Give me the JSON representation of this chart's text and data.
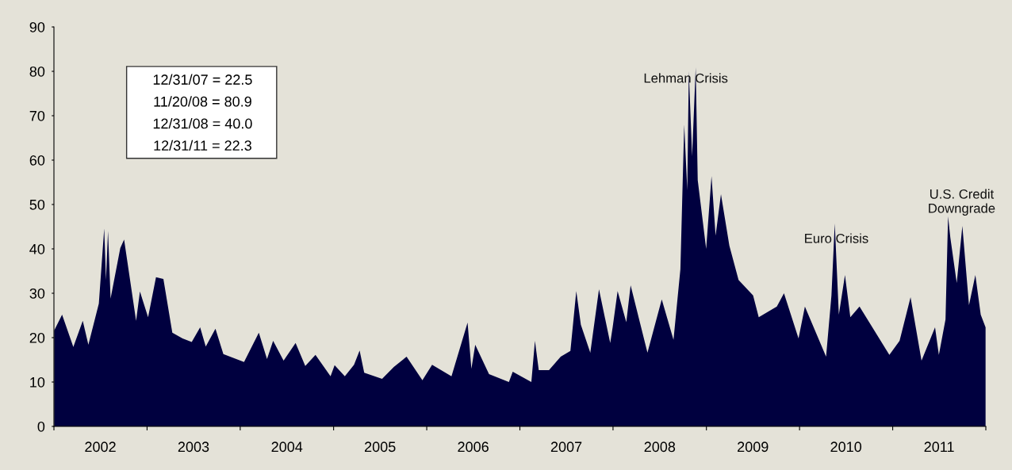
{
  "chart_data": {
    "type": "area",
    "x": [
      "2002-01-02",
      "2002-02-02",
      "2002-03-18",
      "2002-04-24",
      "2002-05-16",
      "2002-06-26",
      "2002-07-17",
      "2002-07-24",
      "2002-08-01",
      "2002-08-11",
      "2002-09-18",
      "2002-10-03",
      "2002-11-19",
      "2002-12-04",
      "2003-01-05",
      "2003-02-05",
      "2003-03-06",
      "2003-04-10",
      "2003-05-20",
      "2003-06-25",
      "2003-07-28",
      "2003-08-19",
      "2003-09-26",
      "2003-10-27",
      "2004-01-16",
      "2004-03-14",
      "2004-04-15",
      "2004-05-09",
      "2004-06-19",
      "2004-08-05",
      "2004-09-12",
      "2004-10-22",
      "2004-12-20",
      "2005-01-05",
      "2005-02-14",
      "2005-03-22",
      "2005-04-13",
      "2005-05-01",
      "2005-07-10",
      "2005-08-25",
      "2005-10-14",
      "2005-12-15",
      "2006-01-22",
      "2006-04-08",
      "2006-06-10",
      "2006-06-25",
      "2006-07-10",
      "2006-09-02",
      "2006-11-19",
      "2006-12-04",
      "2007-02-15",
      "2007-03-01",
      "2007-03-16",
      "2007-04-25",
      "2007-06-10",
      "2007-07-18",
      "2007-08-10",
      "2007-08-28",
      "2007-10-04",
      "2007-11-07",
      "2007-12-21",
      "2007-12-31",
      "2008-01-19",
      "2008-02-22",
      "2008-03-10",
      "2008-05-15",
      "2008-07-10",
      "2008-08-25",
      "2008-09-21",
      "2008-10-06",
      "2008-10-18",
      "2008-10-24",
      "2008-11-06",
      "2008-11-20",
      "2008-11-28",
      "2008-12-31",
      "2009-01-21",
      "2009-02-06",
      "2009-02-27",
      "2009-04-01",
      "2009-05-07",
      "2009-07-03",
      "2009-07-25",
      "2009-10-04",
      "2009-11-01",
      "2009-12-28",
      "2010-01-22",
      "2010-04-15",
      "2010-05-06",
      "2010-05-19",
      "2010-06-04",
      "2010-06-28",
      "2010-07-19",
      "2010-08-24",
      "2010-12-19",
      "2011-01-28",
      "2011-03-12",
      "2011-04-24",
      "2011-06-16",
      "2011-07-01",
      "2011-07-27",
      "2011-08-06",
      "2011-08-15",
      "2011-09-09",
      "2011-10-01",
      "2011-10-27",
      "2011-11-21",
      "2011-12-12",
      "2011-12-31"
    ],
    "values": [
      21.6,
      25.2,
      17.9,
      23.8,
      18.4,
      27.7,
      44.6,
      33.0,
      44.0,
      28.8,
      40.2,
      42.1,
      23.8,
      30.4,
      24.6,
      33.6,
      33.2,
      21.1,
      19.8,
      19.0,
      22.3,
      18.0,
      22.0,
      16.3,
      14.5,
      21.1,
      15.2,
      19.3,
      14.8,
      18.8,
      13.6,
      16.1,
      11.3,
      13.8,
      11.3,
      13.9,
      17.1,
      12.1,
      10.7,
      13.4,
      15.7,
      10.4,
      13.9,
      11.3,
      23.4,
      13.0,
      18.4,
      11.8,
      10.0,
      12.3,
      10.0,
      19.3,
      12.7,
      12.7,
      15.7,
      17.0,
      30.5,
      22.9,
      16.6,
      30.9,
      18.8,
      22.5,
      30.5,
      23.5,
      31.8,
      16.6,
      28.6,
      19.5,
      35.4,
      68.0,
      53.2,
      80.0,
      60.9,
      80.9,
      55.5,
      40.0,
      56.4,
      43.0,
      52.3,
      40.7,
      33.0,
      29.5,
      24.6,
      27.0,
      30.0,
      19.8,
      27.0,
      15.7,
      29.5,
      45.7,
      25.2,
      34.1,
      24.6,
      27.0,
      16.1,
      19.3,
      29.1,
      14.8,
      22.3,
      16.1,
      24.1,
      47.3,
      42.5,
      32.3,
      45.2,
      27.3,
      34.1,
      25.2,
      22.3
    ],
    "color": "#00003f",
    "xlim": [
      "2002-01-01",
      "2012-01-01"
    ],
    "xticks": [
      {
        "value": "2002-01-01",
        "label": null
      },
      {
        "value": "2002-07-02",
        "label": "2002"
      },
      {
        "value": "2003-01-01",
        "label": null
      },
      {
        "value": "2003-07-02",
        "label": "2003"
      },
      {
        "value": "2004-01-01",
        "label": null
      },
      {
        "value": "2004-07-02",
        "label": "2004"
      },
      {
        "value": "2005-01-01",
        "label": null
      },
      {
        "value": "2005-07-02",
        "label": "2005"
      },
      {
        "value": "2006-01-01",
        "label": null
      },
      {
        "value": "2006-07-02",
        "label": "2006"
      },
      {
        "value": "2007-01-01",
        "label": null
      },
      {
        "value": "2007-07-02",
        "label": "2007"
      },
      {
        "value": "2008-01-01",
        "label": null
      },
      {
        "value": "2008-07-02",
        "label": "2008"
      },
      {
        "value": "2009-01-01",
        "label": null
      },
      {
        "value": "2009-07-02",
        "label": "2009"
      },
      {
        "value": "2010-01-01",
        "label": null
      },
      {
        "value": "2010-07-02",
        "label": "2010"
      },
      {
        "value": "2011-01-01",
        "label": null
      },
      {
        "value": "2011-07-02",
        "label": "2011"
      },
      {
        "value": "2012-01-01",
        "label": null
      }
    ],
    "ylim": [
      0,
      90
    ],
    "yticks": [
      0,
      10,
      20,
      30,
      40,
      50,
      60,
      70,
      80,
      90
    ],
    "grid": false,
    "legend": false,
    "annotations": [
      "12/31/07 = 22.5",
      "11/20/08 = 80.9",
      "12/31/08 = 40.0",
      "12/31/11 = 22.3",
      "Lehman Crisis",
      {
        "text": "Euro Crisis",
        "x": "2010-05-25",
        "y": 42.1
      },
      "U.S. Credit\nDowngrade"
    ]
  }
}
